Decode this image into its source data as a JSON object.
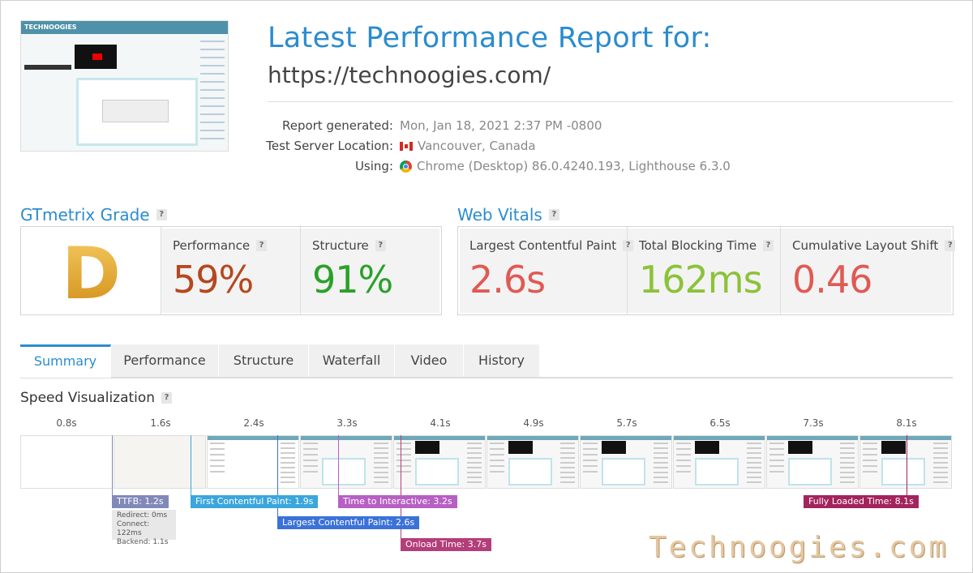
{
  "header": {
    "title": "Latest Performance Report for:",
    "url": "https://technoogies.com/",
    "thumbnail_site": "TECHNOOGIES",
    "rows": [
      {
        "label": "Report generated:",
        "value": "Mon, Jan 18, 2021 2:37 PM -0800"
      },
      {
        "label": "Test Server Location:",
        "value": "Vancouver, Canada",
        "icon": "canada-flag-icon"
      },
      {
        "label": "Using:",
        "value": "Chrome (Desktop) 86.0.4240.193, Lighthouse 6.3.0",
        "icon": "chrome-icon"
      }
    ]
  },
  "grade_section": {
    "title": "GTmetrix Grade",
    "grade": "D",
    "performance": {
      "label": "Performance",
      "value": "59%",
      "color": "#b5481e"
    },
    "structure": {
      "label": "Structure",
      "value": "91%",
      "color": "#2aa12a"
    }
  },
  "vitals_section": {
    "title": "Web Vitals",
    "lcp": {
      "label": "Largest Contentful Paint",
      "value": "2.6s",
      "color": "#e05a54"
    },
    "tbt": {
      "label": "Total Blocking Time",
      "value": "162ms",
      "color": "#8cc23a"
    },
    "cls": {
      "label": "Cumulative Layout Shift",
      "value": "0.46",
      "color": "#e05a54"
    }
  },
  "tabs": [
    "Summary",
    "Performance",
    "Structure",
    "Waterfall",
    "Video",
    "History"
  ],
  "speed": {
    "title": "Speed Visualization",
    "times": [
      "0.8s",
      "1.6s",
      "2.4s",
      "3.3s",
      "4.1s",
      "4.9s",
      "5.7s",
      "6.5s",
      "7.3s",
      "8.1s"
    ],
    "markers": {
      "ttfb": "TTFB: 1.2s",
      "fcp": "First Contentful Paint: 1.9s",
      "tti": "Time to Interactive: 3.2s",
      "lcp": "Largest Contentful Paint: 2.6s",
      "onload": "Onload Time: 3.7s",
      "fully": "Fully Loaded Time: 8.1s"
    },
    "ttfb_details": [
      "Redirect: 0ms",
      "Connect: 122ms",
      "Backend: 1.1s"
    ]
  },
  "watermark": "Technoogies.com"
}
